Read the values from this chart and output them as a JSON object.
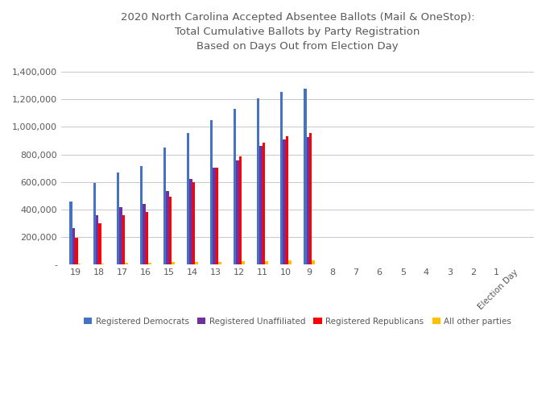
{
  "title": "2020 North Carolina Accepted Absentee Ballots (Mail & OneStop):\nTotal Cumulative Ballots by Party Registration\nBased on Days Out from Election Day",
  "day_labels": [
    "19",
    "18",
    "17",
    "16",
    "15",
    "14",
    "13",
    "12",
    "11",
    "10",
    "9",
    "8",
    "7",
    "6",
    "5",
    "4",
    "3",
    "2",
    "1",
    "Election Day"
  ],
  "democrats": [
    455000,
    595000,
    670000,
    715000,
    850000,
    955000,
    1050000,
    1130000,
    1210000,
    1255000,
    1280000,
    0,
    0,
    0,
    0,
    0,
    0,
    0,
    0,
    0
  ],
  "unaffiliated": [
    265000,
    360000,
    415000,
    440000,
    535000,
    620000,
    705000,
    755000,
    860000,
    910000,
    925000,
    0,
    0,
    0,
    0,
    0,
    0,
    0,
    0,
    0
  ],
  "republicans": [
    195000,
    300000,
    355000,
    380000,
    495000,
    600000,
    705000,
    785000,
    885000,
    935000,
    955000,
    0,
    0,
    0,
    0,
    0,
    0,
    0,
    0,
    0
  ],
  "other": [
    5000,
    8000,
    10000,
    12000,
    15000,
    18000,
    20000,
    22000,
    25000,
    27000,
    28000,
    0,
    0,
    0,
    0,
    0,
    0,
    0,
    0,
    0
  ],
  "colors": {
    "democrats": "#4472C4",
    "unaffiliated": "#7030A0",
    "republicans": "#FF0000",
    "other": "#FFC000"
  },
  "legend_labels": [
    "Registered Democrats",
    "Registered Unaffiliated",
    "Registered Republicans",
    "All other parties"
  ],
  "ylim": [
    0,
    1500000
  ],
  "yticks": [
    0,
    200000,
    400000,
    600000,
    800000,
    1000000,
    1200000,
    1400000
  ],
  "ytick_labels": [
    "-",
    "200,000",
    "400,000",
    "600,000",
    "800,000",
    "1,000,000",
    "1,200,000",
    "1,400,000"
  ],
  "background_color": "#FFFFFF",
  "grid_color": "#BFBFBF",
  "title_color": "#595959",
  "tick_color": "#595959",
  "bar_width": 0.12,
  "figwidth": 6.83,
  "figheight": 4.95,
  "dpi": 100
}
